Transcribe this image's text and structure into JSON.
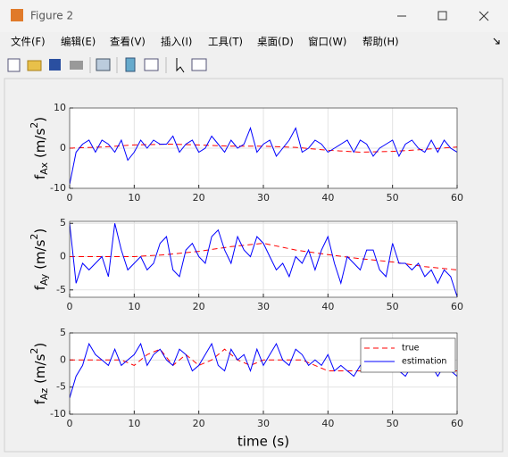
{
  "window": {
    "title": "Figure 2",
    "menu": [
      "文件(F)",
      "编辑(E)",
      "查看(V)",
      "插入(I)",
      "工具(T)",
      "桌面(D)",
      "窗口(W)",
      "帮助(H)"
    ]
  },
  "chart_data": [
    {
      "type": "line",
      "ylabel": [
        "f",
        "Ax",
        " (m/s",
        "2",
        ")"
      ],
      "xlim": [
        0,
        60
      ],
      "xticks": [
        0,
        10,
        20,
        30,
        40,
        50,
        60
      ],
      "ylim": [
        -10,
        10
      ],
      "yticks": [
        -10,
        0,
        10
      ],
      "grid": true,
      "series": [
        {
          "color": "#ff0000",
          "linestyle": "dashed",
          "x": [
            0,
            5,
            10,
            15,
            20,
            25,
            30,
            35,
            40,
            45,
            50,
            55,
            60
          ],
          "values": [
            0,
            0.3,
            0.8,
            1,
            0.8,
            0.5,
            0.5,
            0.2,
            -0.5,
            -1,
            -0.8,
            -0.3,
            0.3
          ]
        },
        {
          "color": "#0000ff",
          "linestyle": "solid",
          "x": [
            0,
            1,
            2,
            3,
            4,
            5,
            6,
            7,
            8,
            9,
            10,
            11,
            12,
            13,
            14,
            15,
            16,
            17,
            18,
            19,
            20,
            21,
            22,
            23,
            24,
            25,
            26,
            27,
            28,
            29,
            30,
            31,
            32,
            33,
            34,
            35,
            36,
            37,
            38,
            39,
            40,
            41,
            42,
            43,
            44,
            45,
            46,
            47,
            48,
            49,
            50,
            51,
            52,
            53,
            54,
            55,
            56,
            57,
            58,
            59,
            60
          ],
          "values": [
            -9,
            -1,
            1,
            2,
            -1,
            2,
            1,
            -1,
            2,
            -3,
            -1,
            2,
            0,
            2,
            1,
            1,
            3,
            -1,
            1,
            2,
            -1,
            0,
            3,
            1,
            -1,
            2,
            0,
            1,
            5,
            -1,
            1,
            2,
            -2,
            0,
            2,
            5,
            -1,
            0,
            2,
            1,
            -1,
            0,
            1,
            2,
            -1,
            2,
            1,
            -2,
            0,
            1,
            2,
            -2,
            1,
            2,
            0,
            -1,
            2,
            -1,
            2,
            0,
            -1
          ]
        }
      ]
    },
    {
      "type": "line",
      "ylabel": [
        "f",
        "Ay",
        " (m/s",
        "2",
        ")"
      ],
      "xlim": [
        0,
        60
      ],
      "xticks": [
        0,
        10,
        20,
        30,
        40,
        50,
        60
      ],
      "ylim": [
        -6.1,
        5.3
      ],
      "yticks": [
        -5,
        0,
        5
      ],
      "grid": true,
      "series": [
        {
          "color": "#ff0000",
          "linestyle": "dashed",
          "x": [
            0,
            5,
            10,
            15,
            20,
            25,
            30,
            35,
            40,
            45,
            50,
            55,
            60
          ],
          "values": [
            0,
            0,
            0,
            0.3,
            0.8,
            1.5,
            2,
            1,
            0.3,
            -0.3,
            -0.8,
            -1.5,
            -2
          ]
        },
        {
          "color": "#0000ff",
          "linestyle": "solid",
          "x": [
            0,
            1,
            2,
            3,
            4,
            5,
            6,
            7,
            8,
            9,
            10,
            11,
            12,
            13,
            14,
            15,
            16,
            17,
            18,
            19,
            20,
            21,
            22,
            23,
            24,
            25,
            26,
            27,
            28,
            29,
            30,
            31,
            32,
            33,
            34,
            35,
            36,
            37,
            38,
            39,
            40,
            41,
            42,
            43,
            44,
            45,
            46,
            47,
            48,
            49,
            50,
            51,
            52,
            53,
            54,
            55,
            56,
            57,
            58,
            59,
            60
          ],
          "values": [
            5,
            -4,
            -1,
            -2,
            -1,
            0,
            -3,
            5,
            1,
            -2,
            -1,
            0,
            -2,
            -1,
            2,
            3,
            -2,
            -3,
            1,
            2,
            0,
            -1,
            3,
            4,
            1,
            -1,
            3,
            1,
            0,
            3,
            2,
            0,
            -2,
            -1,
            -3,
            0,
            -1,
            1,
            -2,
            1,
            3,
            -1,
            -4,
            0,
            -1,
            -2,
            1,
            1,
            -2,
            -3,
            2,
            -1,
            -1,
            -2,
            -1,
            -3,
            -2,
            -4,
            -2,
            -3,
            -6
          ]
        }
      ]
    },
    {
      "type": "line",
      "ylabel": [
        "f",
        "Az",
        " (m/s",
        "2",
        ")"
      ],
      "xlabel": "time (s)",
      "xlim": [
        0,
        60
      ],
      "xticks": [
        0,
        10,
        20,
        30,
        40,
        50,
        60
      ],
      "ylim": [
        -10,
        5
      ],
      "yticks": [
        -10,
        -5,
        0,
        5
      ],
      "grid": true,
      "legend": "upper right",
      "series": [
        {
          "name": "true",
          "color": "#ff0000",
          "linestyle": "dashed",
          "x": [
            0,
            2,
            4,
            6,
            8,
            10,
            12,
            14,
            16,
            18,
            20,
            22,
            24,
            26,
            28,
            30,
            32,
            34,
            36,
            38,
            40,
            42,
            44,
            46,
            48,
            50,
            52,
            54,
            56,
            58,
            60
          ],
          "values": [
            0,
            0,
            0,
            0,
            0,
            -1,
            1,
            2,
            -1,
            1,
            -1,
            0,
            2,
            0,
            -1,
            0,
            0,
            0,
            0,
            -1,
            -2,
            -2,
            -2,
            -2,
            -2,
            -2,
            -2,
            -2,
            -2,
            -2,
            -2
          ]
        },
        {
          "name": "estimation",
          "color": "#0000ff",
          "linestyle": "solid",
          "x": [
            0,
            1,
            2,
            3,
            4,
            5,
            6,
            7,
            8,
            9,
            10,
            11,
            12,
            13,
            14,
            15,
            16,
            17,
            18,
            19,
            20,
            21,
            22,
            23,
            24,
            25,
            26,
            27,
            28,
            29,
            30,
            31,
            32,
            33,
            34,
            35,
            36,
            37,
            38,
            39,
            40,
            41,
            42,
            43,
            44,
            45,
            46,
            47,
            48,
            49,
            50,
            51,
            52,
            53,
            54,
            55,
            56,
            57,
            58,
            59,
            60
          ],
          "values": [
            -7,
            -3,
            -1,
            3,
            1,
            0,
            -1,
            2,
            -1,
            0,
            1,
            3,
            -1,
            1,
            2,
            0,
            -1,
            2,
            1,
            -2,
            -1,
            1,
            3,
            -1,
            -2,
            2,
            0,
            1,
            -2,
            2,
            -1,
            1,
            3,
            0,
            -1,
            2,
            1,
            -1,
            0,
            -1,
            1,
            -2,
            -1,
            -2,
            -3,
            -1,
            0,
            1,
            -2,
            -1,
            0,
            -2,
            -3,
            -1,
            0,
            -2,
            -1,
            -3,
            -1,
            -2,
            -3
          ]
        }
      ]
    }
  ]
}
